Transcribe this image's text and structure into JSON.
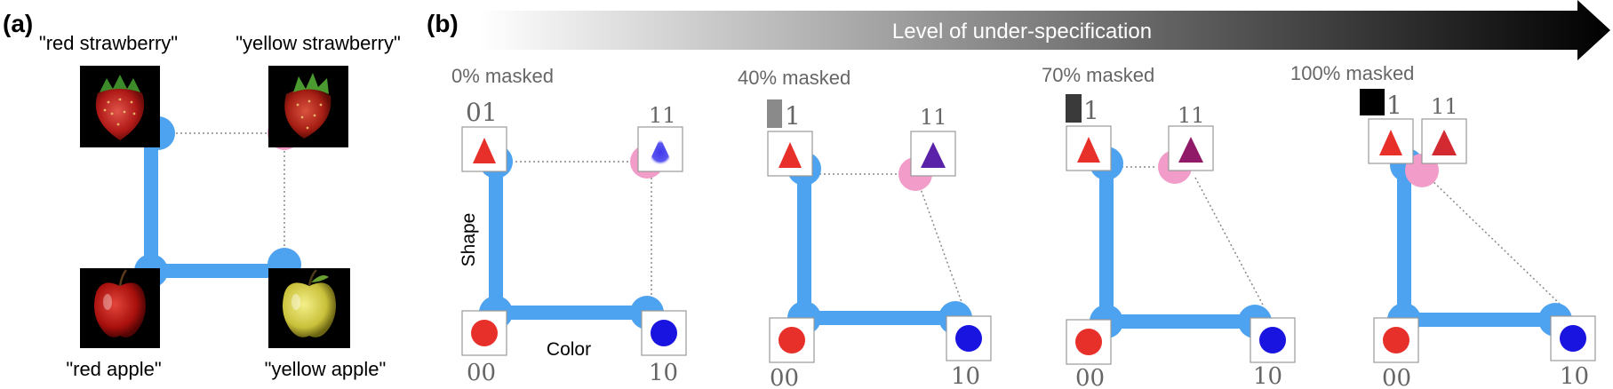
{
  "panel_a": {
    "label": "(a)",
    "captions": {
      "top_left": "\"red strawberry\"",
      "top_right": "\"yellow strawberry\"",
      "bottom_left": "\"red apple\"",
      "bottom_right": "\"yellow apple\""
    },
    "images": {
      "top_left": "red-strawberry",
      "top_right": "yellow-strawberry",
      "bottom_left": "red-apple",
      "bottom_right": "yellow-apple"
    }
  },
  "panel_b": {
    "label": "(b)",
    "arrow_label": "Level of under-specification",
    "axis_shape": "Shape",
    "axis_color": "Color",
    "code_00": "00",
    "code_10": "10",
    "code_11": "11",
    "code_01_suffix": "1",
    "code_01_full": "01",
    "stages": [
      {
        "title": "0% masked"
      },
      {
        "title": "40% masked"
      },
      {
        "title": "70% masked"
      },
      {
        "title": "100% masked"
      }
    ]
  },
  "colors": {
    "edge": "#4ea3f0",
    "node_blue": "#4ea3f0",
    "node_pink": "#f29cc9",
    "red": "#e8302a",
    "blue": "#1a14e0",
    "text_gray": "#666666"
  }
}
